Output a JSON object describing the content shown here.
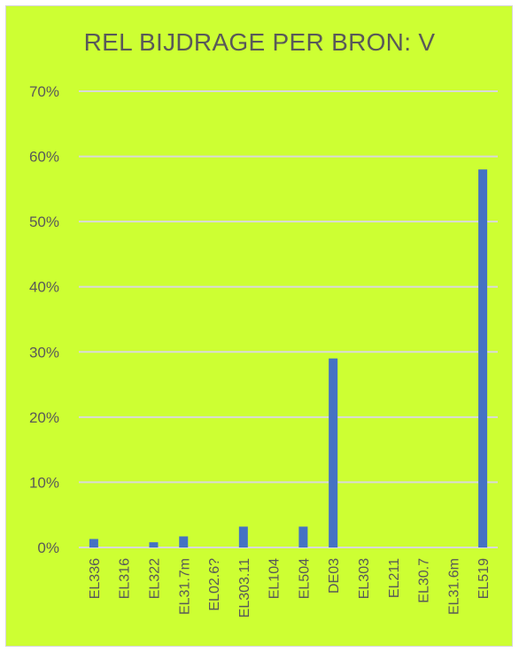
{
  "chart_data": {
    "type": "bar",
    "title": "REL BIJDRAGE PER BRON: V",
    "xlabel": "",
    "ylabel": "",
    "categories": [
      "EL336",
      "EL316",
      "EL322",
      "EL31.7m",
      "EL02.6?",
      "EL303.11",
      "EL104",
      "EL504",
      "DE03",
      "EL303",
      "EL211",
      "EL30.7",
      "EL31.6m",
      "EL519"
    ],
    "values": [
      1.3,
      0.0,
      0.8,
      1.7,
      0.0,
      3.2,
      0.0,
      3.2,
      29.0,
      0.0,
      0.0,
      0.0,
      0.0,
      58.0
    ],
    "value_unit": "percent",
    "ylim": [
      0,
      70
    ],
    "yticks": [
      "0%",
      "10%",
      "20%",
      "30%",
      "40%",
      "50%",
      "60%",
      "70%"
    ],
    "grid": true,
    "legend": "none",
    "colors": {
      "background": "#cdff33",
      "bar": "#4472c4",
      "grid": "#d9d9d9",
      "text": "#595959"
    }
  }
}
